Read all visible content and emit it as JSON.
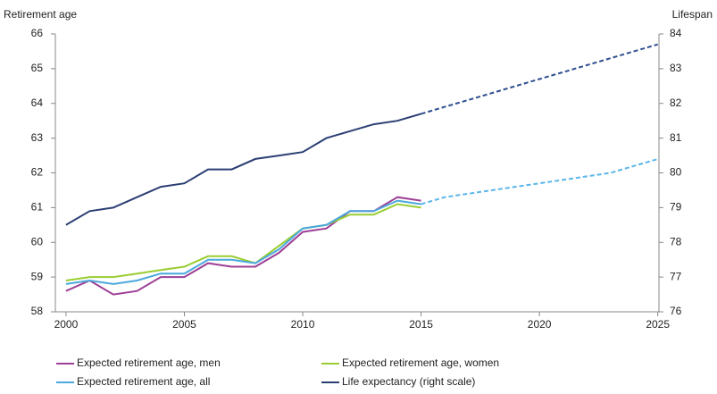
{
  "chart_data": {
    "type": "line",
    "y_label": "Retirement age",
    "y2_label": "Lifespan",
    "x": [
      2000,
      2001,
      2002,
      2003,
      2004,
      2005,
      2006,
      2007,
      2008,
      2009,
      2010,
      2011,
      2012,
      2013,
      2014,
      2015,
      2016,
      2017,
      2018,
      2019,
      2020,
      2021,
      2022,
      2023,
      2024,
      2025
    ],
    "xlim": [
      1999.55,
      2025.05
    ],
    "xticks": [
      2000,
      2005,
      2010,
      2015,
      2020,
      2025
    ],
    "ylim": [
      58,
      66
    ],
    "yticks": [
      58,
      59,
      60,
      61,
      62,
      63,
      64,
      65,
      66
    ],
    "y2lim": [
      76,
      84
    ],
    "y2ticks": [
      76,
      77,
      78,
      79,
      80,
      81,
      82,
      83,
      84
    ],
    "projection_start": 2015,
    "legend": "bottom",
    "series": [
      {
        "name": "Expected retirement age, men",
        "color": "#9e3f95",
        "projection_color": "#9e3f95",
        "values": [
          58.6,
          58.9,
          58.5,
          58.6,
          59.0,
          59.0,
          59.4,
          59.3,
          59.3,
          59.7,
          60.3,
          60.4,
          60.9,
          60.9,
          61.3,
          61.2,
          null,
          null,
          null,
          null,
          null,
          null,
          null,
          null,
          null,
          null
        ]
      },
      {
        "name": "Expected retirement age, women",
        "color": "#9acd32",
        "projection_color": "#9acd32",
        "values": [
          58.9,
          59.0,
          59.0,
          59.1,
          59.2,
          59.3,
          59.6,
          59.6,
          59.4,
          59.9,
          60.4,
          60.5,
          60.8,
          60.8,
          61.1,
          61.0,
          null,
          null,
          null,
          null,
          null,
          null,
          null,
          null,
          null,
          null
        ]
      },
      {
        "name": "Expected retirement age, all",
        "color": "#4aa8dc",
        "projection_color": "#5bb6e8",
        "values": [
          58.8,
          58.9,
          58.8,
          58.9,
          59.1,
          59.1,
          59.5,
          59.5,
          59.4,
          59.8,
          60.4,
          60.5,
          60.9,
          60.9,
          61.2,
          61.1,
          61.3,
          61.4,
          61.5,
          61.6,
          61.7,
          61.8,
          61.9,
          62.0,
          62.2,
          62.4
        ]
      },
      {
        "name": "Life expectancy (right scale)",
        "color": "#2b3f73",
        "projection_color": "#2f4f8f",
        "axis": "y2",
        "values": [
          78.5,
          78.9,
          79.0,
          79.3,
          79.6,
          79.7,
          80.1,
          80.1,
          80.4,
          80.5,
          80.6,
          81.0,
          81.2,
          81.4,
          81.5,
          81.7,
          81.9,
          82.1,
          82.3,
          82.5,
          82.7,
          82.9,
          83.1,
          83.3,
          83.5,
          83.7
        ]
      }
    ]
  }
}
